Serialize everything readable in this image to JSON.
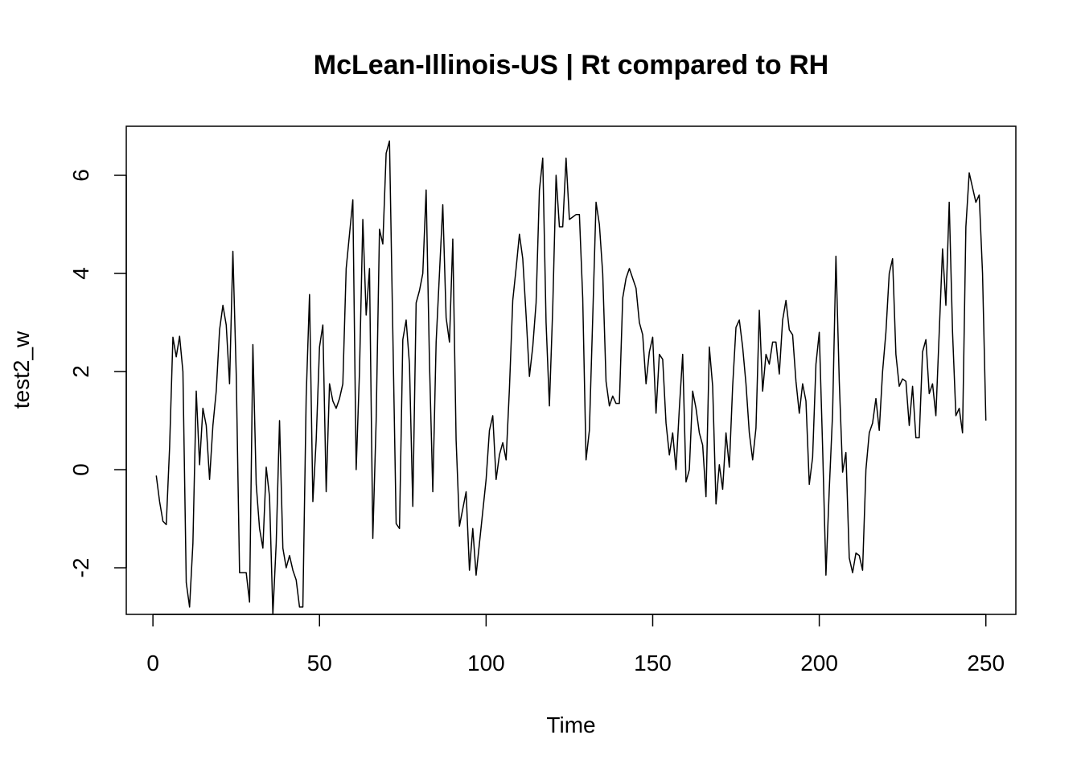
{
  "chart_data": {
    "type": "line",
    "title": "McLean-Illinois-US | Rt compared to RH",
    "xlabel": "Time",
    "ylabel": "test2_w",
    "xlim": [
      -8,
      259
    ],
    "ylim": [
      -2.95,
      7.0
    ],
    "x_ticks": [
      0,
      50,
      100,
      150,
      200,
      250
    ],
    "x_tick_labels": [
      "0",
      "50",
      "100",
      "150",
      "200",
      "250"
    ],
    "y_ticks": [
      -2,
      0,
      2,
      4,
      6
    ],
    "y_tick_labels": [
      "-2",
      "0",
      "2",
      "4",
      "6"
    ],
    "grid": false,
    "legend": "none",
    "x_start": 1,
    "values": [
      -0.12,
      -0.65,
      -1.05,
      -1.12,
      0.45,
      2.7,
      2.3,
      2.72,
      2.0,
      -2.3,
      -2.8,
      -1.5,
      1.6,
      0.1,
      1.25,
      0.9,
      -0.2,
      0.9,
      1.6,
      2.85,
      3.35,
      2.95,
      1.75,
      4.45,
      1.95,
      -2.1,
      -2.1,
      -2.1,
      -2.7,
      2.55,
      -0.3,
      -1.2,
      -1.6,
      0.05,
      -0.55,
      -2.95,
      -1.5,
      1.0,
      -1.6,
      -2.0,
      -1.75,
      -2.05,
      -2.25,
      -2.8,
      -2.8,
      1.5,
      3.57,
      -0.65,
      0.6,
      2.5,
      2.95,
      -0.45,
      1.75,
      1.4,
      1.25,
      1.45,
      1.75,
      4.1,
      4.8,
      5.5,
      0.0,
      2.0,
      5.1,
      3.15,
      4.1,
      -1.4,
      1.0,
      4.9,
      4.6,
      6.45,
      6.7,
      2.8,
      -1.1,
      -1.2,
      2.65,
      3.05,
      2.15,
      -0.75,
      3.4,
      3.65,
      4.0,
      5.7,
      2.2,
      -0.45,
      2.6,
      4.0,
      5.4,
      3.1,
      2.6,
      4.7,
      0.6,
      -1.15,
      -0.8,
      -0.45,
      -2.05,
      -1.2,
      -2.15,
      -1.5,
      -0.85,
      -0.2,
      0.8,
      1.1,
      -0.2,
      0.3,
      0.55,
      0.2,
      1.65,
      3.45,
      4.1,
      4.8,
      4.3,
      3.15,
      1.9,
      2.5,
      3.4,
      5.7,
      6.35,
      3.0,
      1.3,
      3.3,
      6.0,
      4.95,
      4.95,
      6.35,
      5.1,
      5.15,
      5.2,
      5.2,
      3.5,
      0.2,
      0.8,
      3.1,
      5.45,
      5.0,
      4.0,
      1.8,
      1.3,
      1.5,
      1.35,
      1.35,
      3.5,
      3.9,
      4.1,
      3.9,
      3.7,
      3.0,
      2.75,
      1.75,
      2.4,
      2.7,
      1.15,
      2.35,
      2.25,
      0.95,
      0.3,
      0.75,
      0.0,
      1.25,
      2.35,
      -0.25,
      0.0,
      1.6,
      1.25,
      0.75,
      0.5,
      -0.55,
      2.5,
      1.7,
      -0.7,
      0.1,
      -0.4,
      0.75,
      0.05,
      1.7,
      2.9,
      3.05,
      2.5,
      1.75,
      0.75,
      0.2,
      0.85,
      3.25,
      1.6,
      2.35,
      2.15,
      2.6,
      2.6,
      1.95,
      3.05,
      3.45,
      2.85,
      2.75,
      1.8,
      1.15,
      1.75,
      1.4,
      -0.3,
      0.25,
      2.15,
      2.8,
      0.45,
      -2.15,
      -0.4,
      1.15,
      4.35,
      1.8,
      -0.05,
      0.35,
      -1.8,
      -2.1,
      -1.7,
      -1.75,
      -2.05,
      0.0,
      0.75,
      0.95,
      1.45,
      0.8,
      2.0,
      2.8,
      4.0,
      4.3,
      2.35,
      1.7,
      1.85,
      1.8,
      0.9,
      1.7,
      0.65,
      0.65,
      2.4,
      2.65,
      1.55,
      1.75,
      1.1,
      2.8,
      4.5,
      3.35,
      5.45,
      2.8,
      1.1,
      1.25,
      0.75,
      4.95,
      6.05,
      5.75,
      5.45,
      5.6,
      4.0,
      1.0
    ]
  }
}
